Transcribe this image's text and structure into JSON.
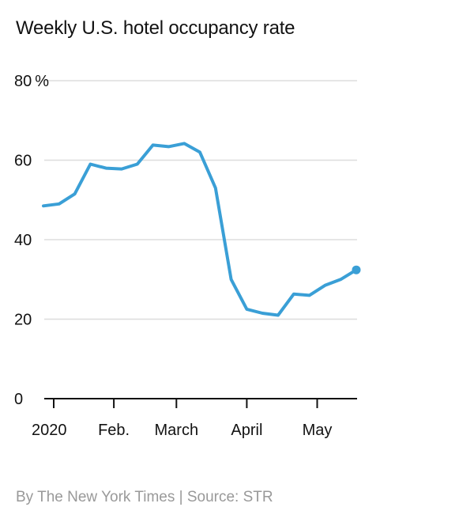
{
  "chart_data": {
    "type": "line",
    "title": "Weekly U.S. hotel occupancy rate",
    "xlabel": "",
    "ylabel": "",
    "y_unit_suffix": "%",
    "ylim": [
      0,
      80
    ],
    "y_ticks": [
      {
        "value": 0,
        "label": "0"
      },
      {
        "value": 20,
        "label": "20"
      },
      {
        "value": 40,
        "label": "40"
      },
      {
        "value": 60,
        "label": "60"
      },
      {
        "value": 80,
        "label": "80"
      }
    ],
    "x_ticks": [
      {
        "week": 0,
        "label": "2020"
      },
      {
        "week": 4.5,
        "label": "Feb."
      },
      {
        "week": 8.5,
        "label": "March"
      },
      {
        "week": 13,
        "label": "April"
      },
      {
        "week": 17.5,
        "label": "May"
      }
    ],
    "grid": true,
    "legend": "none",
    "line_color": "#3a9fd6",
    "series": [
      {
        "week": [
          0,
          1,
          2,
          3,
          4,
          5,
          6,
          7,
          8,
          9,
          10,
          11,
          12,
          13,
          14,
          15,
          16,
          17,
          18,
          19,
          20
        ],
        "values": [
          48.5,
          49,
          51.5,
          59,
          58,
          57.8,
          59,
          63.8,
          63.4,
          64.2,
          62,
          53,
          30,
          22.5,
          21.5,
          21,
          26.3,
          26,
          28.5,
          30,
          32.4
        ]
      }
    ],
    "endpoint_marker": true
  },
  "footer": {
    "credit": "By The New York Times | Source: STR"
  }
}
